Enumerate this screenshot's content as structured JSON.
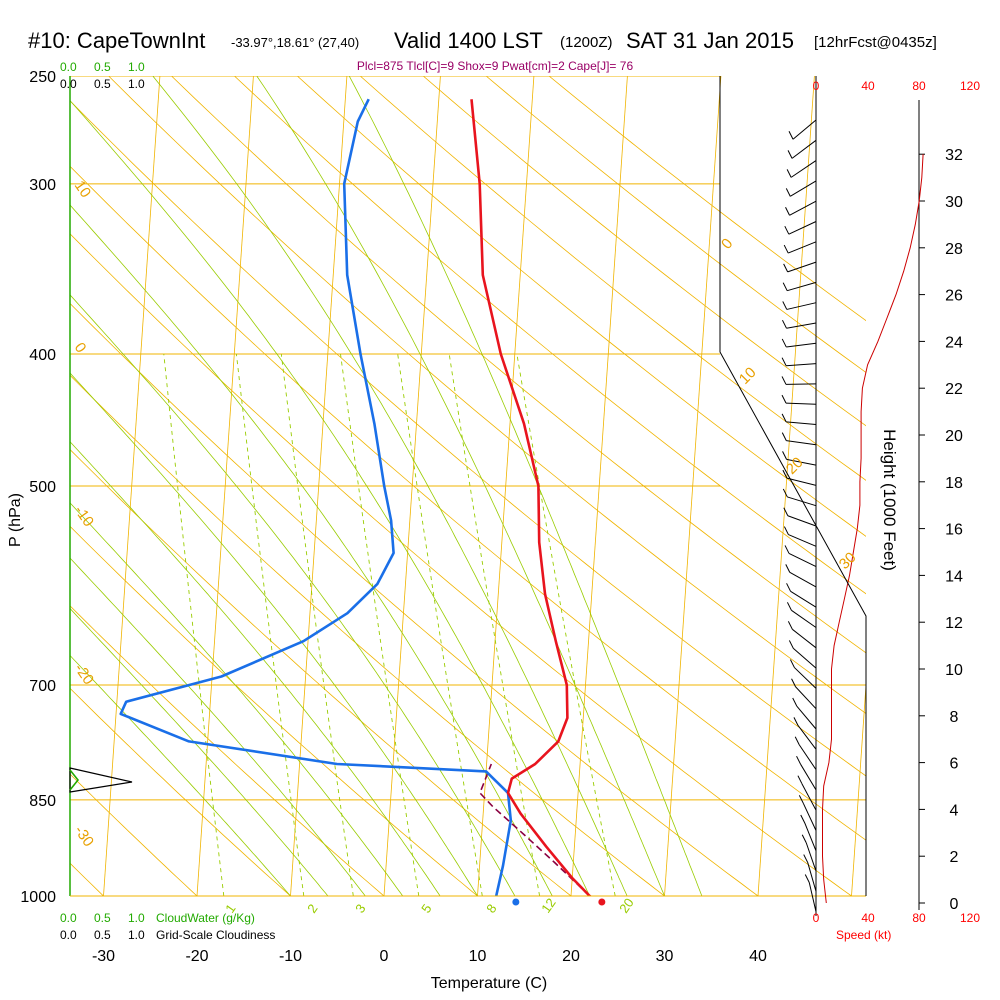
{
  "header": {
    "station": "#10: CapeTownInt",
    "coords": "-33.97°,18.61° (27,40)",
    "valid": "Valid 1400 LST",
    "zulu": "(1200Z)",
    "date": "SAT 31 Jan 2015",
    "forecast": "[12hrFcst@0435z]"
  },
  "indices": "Plcl=875 Tlcl[C]=9 Shox=9 Pwat[cm]=2 Cape[J]= 76",
  "cloud_scale": {
    "top_green": [
      "0.0",
      "0.5",
      "1.0"
    ],
    "top_black": [
      "0.0",
      "0.5",
      "1.0"
    ],
    "bottom_green": [
      "0.0",
      "0.5",
      "1.0"
    ],
    "bottom_black": [
      "0.0",
      "0.5",
      "1.0"
    ],
    "cloudwater_label": "CloudWater (g/Kg)",
    "cloudiness_label": "Grid-Scale Cloudiness"
  },
  "speed_axis": {
    "top_ticks": [
      "0",
      "40",
      "80",
      "120"
    ],
    "bottom_ticks": [
      "0",
      "40",
      "80",
      "120"
    ],
    "label": "Speed (kt)"
  },
  "colors": {
    "temperature": "#e8141e",
    "dewpoint": "#1a6fe8",
    "parcel": "#8b0040",
    "isotherm": "#f0b400",
    "dry_adiabat": "#f0b400",
    "moist_adiabat": "#99cc00",
    "mixing_ratio": "#99cc00",
    "cloud": "#22aa00",
    "speed": "#cc0000"
  },
  "chart_data": {
    "type": "line",
    "title": "#10: CapeTownInt",
    "xlabel": "Temperature (C)",
    "ylabel": "P (hPa)",
    "y2label": "Height (1000 Feet)",
    "xlim": [
      -34,
      46
    ],
    "ylim": [
      1000,
      250
    ],
    "log_scale_y": true,
    "x_ticks": [
      "-30",
      "-20",
      "-10",
      "0",
      "10",
      "20",
      "30",
      "40"
    ],
    "y_ticks": [
      "250",
      "300",
      "400",
      "500",
      "700",
      "850",
      "1000"
    ],
    "height_ticks": [
      "0",
      "2",
      "4",
      "6",
      "8",
      "10",
      "12",
      "14",
      "16",
      "18",
      "20",
      "22",
      "24",
      "26",
      "28",
      "30",
      "32"
    ],
    "dry_adiabat_labels": [
      "10",
      "0",
      "-10",
      "-20",
      "-30"
    ],
    "isotherm_labels": [
      "0",
      "10",
      "20",
      "30"
    ],
    "mixing_ratio_labels": [
      "1",
      "2",
      "3",
      "5",
      "8",
      "12",
      "20"
    ],
    "series": [
      {
        "name": "Temperature",
        "points": [
          [
            23,
            1010
          ],
          [
            22,
            1000
          ],
          [
            20,
            970
          ],
          [
            17,
            920
          ],
          [
            14,
            870
          ],
          [
            12.5,
            840
          ],
          [
            12.8,
            820
          ],
          [
            15.2,
            800
          ],
          [
            17.5,
            770
          ],
          [
            18.3,
            740
          ],
          [
            18,
            700
          ],
          [
            16.5,
            650
          ],
          [
            15,
            600
          ],
          [
            14,
            550
          ],
          [
            13.5,
            500
          ],
          [
            11.5,
            450
          ],
          [
            8.5,
            400
          ],
          [
            6,
            350
          ],
          [
            5,
            300
          ],
          [
            3.5,
            260
          ]
        ]
      },
      {
        "name": "Dewpoint",
        "points": [
          [
            12,
            1000
          ],
          [
            12.5,
            950
          ],
          [
            13,
            880
          ],
          [
            12.5,
            840
          ],
          [
            10,
            810
          ],
          [
            -6,
            800
          ],
          [
            -22,
            770
          ],
          [
            -29.5,
            735
          ],
          [
            -29,
            720
          ],
          [
            -19,
            690
          ],
          [
            -10.5,
            650
          ],
          [
            -6,
            620
          ],
          [
            -3,
            590
          ],
          [
            -1.5,
            560
          ],
          [
            -2,
            530
          ],
          [
            -3,
            500
          ],
          [
            -4.5,
            450
          ],
          [
            -6.5,
            400
          ],
          [
            -8.5,
            350
          ],
          [
            -9.5,
            300
          ],
          [
            -8.5,
            270
          ],
          [
            -7.5,
            260
          ]
        ]
      },
      {
        "name": "Parcel",
        "points": [
          [
            22,
            1000
          ],
          [
            18,
            945
          ],
          [
            14,
            895
          ],
          [
            11,
            860
          ],
          [
            9.5,
            840
          ],
          [
            10,
            820
          ],
          [
            10.5,
            800
          ]
        ]
      }
    ],
    "surface_temperature": 23.3,
    "surface_dewpoint": 14.1,
    "speed_profile_kt": [
      [
        8,
        0
      ],
      [
        6,
        1
      ],
      [
        5,
        2
      ],
      [
        5,
        3
      ],
      [
        5,
        4
      ],
      [
        6,
        5
      ],
      [
        10,
        6
      ],
      [
        12,
        7
      ],
      [
        12,
        8
      ],
      [
        12,
        9
      ],
      [
        12,
        10
      ],
      [
        14,
        11
      ],
      [
        18,
        12
      ],
      [
        22,
        13
      ],
      [
        26,
        14
      ],
      [
        29,
        15
      ],
      [
        32,
        16
      ],
      [
        34,
        17
      ],
      [
        34,
        18
      ],
      [
        35,
        19
      ],
      [
        35,
        20
      ],
      [
        35,
        21
      ],
      [
        36,
        22
      ],
      [
        40,
        23
      ],
      [
        48,
        24
      ],
      [
        55,
        25
      ],
      [
        62,
        26
      ],
      [
        68,
        27
      ],
      [
        73,
        28
      ],
      [
        77,
        29
      ],
      [
        80,
        30
      ],
      [
        82,
        31
      ],
      [
        83,
        32
      ]
    ]
  }
}
